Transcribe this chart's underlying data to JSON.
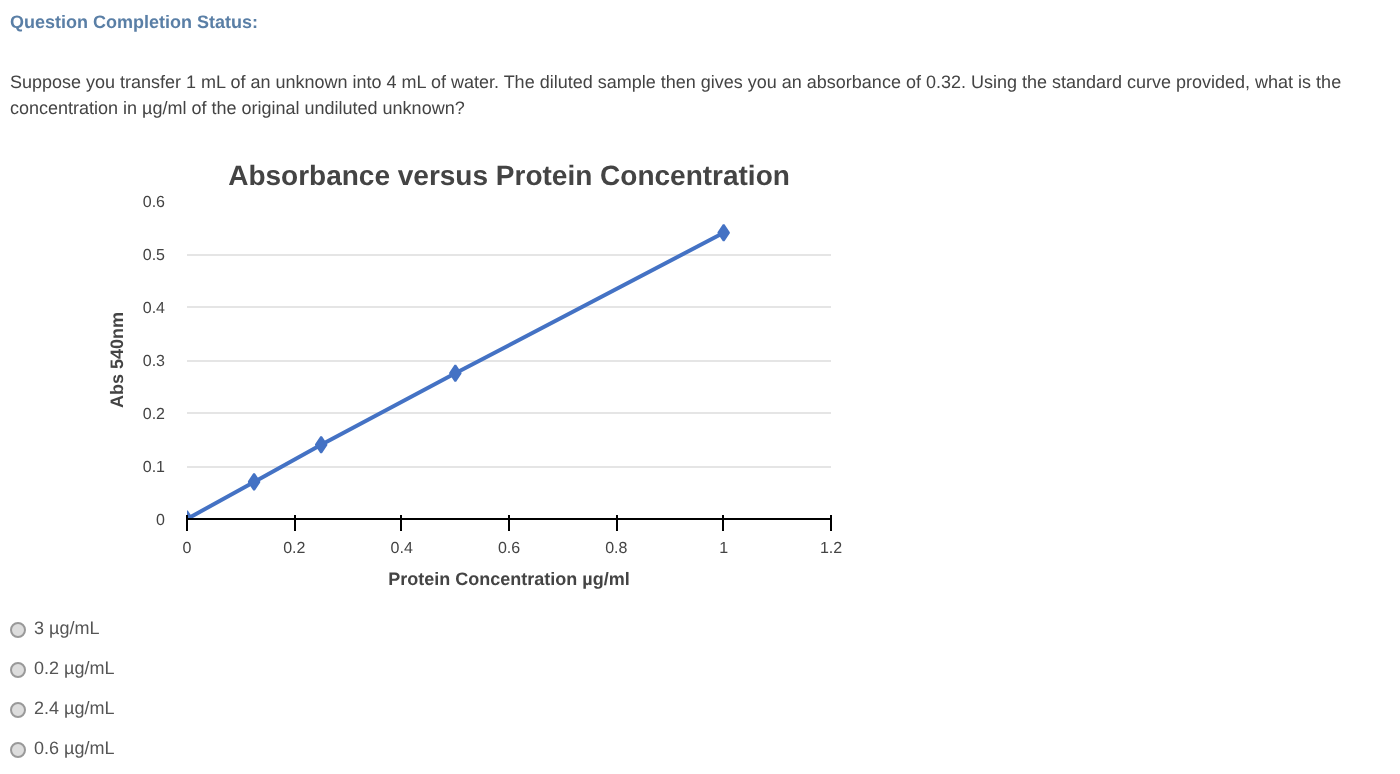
{
  "chart_data": {
    "type": "line",
    "title": "Absorbance versus Protein Concentration",
    "xlabel": "Protein Concentration µg/ml",
    "ylabel": "Abs 540nm",
    "x": [
      0,
      0.125,
      0.25,
      0.5,
      1
    ],
    "series": [
      {
        "color": "#4472c4",
        "values": [
          0,
          0.07,
          0.14,
          0.275,
          0.54
        ]
      }
    ],
    "xlim": [
      0,
      1.2
    ],
    "xticks": [
      0,
      0.2,
      0.4,
      0.6,
      0.8,
      1,
      1.2
    ],
    "ylim": [
      0,
      0.6
    ],
    "yticks": [
      0,
      0.1,
      0.2,
      0.3,
      0.4,
      0.5,
      0.6
    ],
    "grid": "y",
    "marker": "diamond",
    "line_style": "solid",
    "annotations": [
      "Question Completion Status:",
      "Suppose you transfer 1 mL of an unknown into 4 mL of water. The diluted sample then gives you an absorbance of 0.32. Using the standard curve provided, what is the concentration in µg/ml of the original undiluted unknown?",
      "3 µg/mL",
      "0.2 µg/mL",
      "2.4 µg/mL",
      "0.6 µg/mL"
    ]
  }
}
